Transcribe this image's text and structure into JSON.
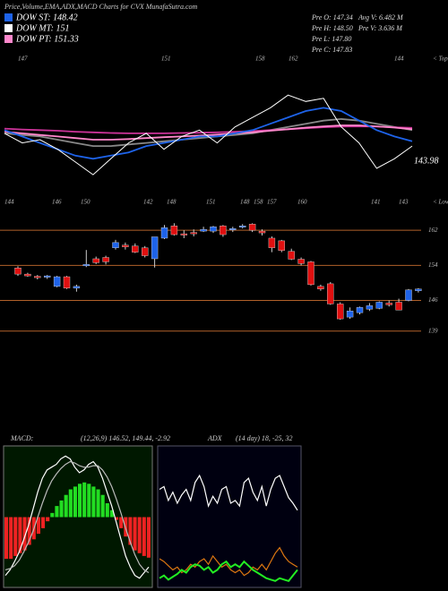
{
  "header": {
    "title": "Price,Volume,EMA,ADX,MACD Charts for CVX  MunafaSutra.com",
    "legend": [
      {
        "name": "DOW ST: 148.42",
        "color": "#1e63e9"
      },
      {
        "name": "DOW MT: 151",
        "color": "#ffffff"
      },
      {
        "name": "DOW PT: 151.33",
        "color": "#ff88cc"
      }
    ],
    "stats": [
      "Pre O: 147.34",
      "Pre H: 148.50",
      "Pre L: 147.80",
      "Pre C: 147.83"
    ],
    "stats2": [
      "Avg V: 6.482 M",
      "Pre V: 3.636 M"
    ]
  },
  "chart_data": [
    {
      "type": "line",
      "top_labels": [
        147,
        151,
        158,
        162,
        144
      ],
      "top_caption": "< Tops",
      "low_labels": [
        144,
        146,
        150,
        142,
        148,
        151,
        148,
        158,
        157,
        160,
        141,
        143
      ],
      "low_caption": "< Lows",
      "last_label": 143.98,
      "ylim": [
        130,
        175
      ],
      "series": [
        {
          "color": "#888888",
          "values": [
            150,
            149.5,
            149,
            148,
            147,
            146,
            146,
            146.5,
            147,
            147.5,
            148,
            148.5,
            149,
            149.5,
            150,
            151,
            152,
            153,
            154,
            154.5,
            154,
            153,
            152,
            151
          ]
        },
        {
          "color": "#cc3399",
          "values": [
            151.5,
            151.2,
            151,
            150.8,
            150.5,
            150.3,
            150.1,
            150,
            150,
            150,
            150.1,
            150.2,
            150.3,
            150.5,
            150.7,
            151,
            151.3,
            151.6,
            151.9,
            152.1,
            152.2,
            152.1,
            151.9,
            151.7
          ]
        },
        {
          "color": "#ff88cc",
          "values": [
            150.5,
            150,
            149.5,
            149,
            148.5,
            148,
            148,
            148.2,
            148.5,
            148.8,
            149,
            149.3,
            149.6,
            150,
            150.3,
            150.8,
            151.3,
            151.8,
            152.2,
            152.5,
            152.5,
            152.2,
            151.8,
            151.3
          ]
        },
        {
          "color": "#1e63e9",
          "values": [
            151,
            149,
            147,
            145,
            143,
            142,
            143,
            144,
            146,
            147,
            148,
            149,
            149,
            150,
            151,
            153,
            155,
            157,
            158,
            157,
            154,
            151,
            149,
            147.5
          ]
        },
        {
          "color": "#ffffff",
          "values": [
            150,
            147,
            148,
            145,
            141,
            137,
            142,
            147,
            150,
            145,
            149,
            151,
            147,
            152,
            155,
            158,
            162,
            160,
            161,
            152,
            147,
            139,
            142,
            146
          ]
        }
      ]
    },
    {
      "type": "candlestick",
      "ylim": [
        116.5,
        165.5
      ],
      "yticks": [
        162,
        154,
        146,
        139
      ],
      "grid": true,
      "up_color": "#1e63e9",
      "down_color": "#e01010",
      "line_color": "#b0602a",
      "open": [
        153.4,
        152,
        151.5,
        151.3,
        149.2,
        151.4,
        148.8,
        154,
        155.5,
        155.8,
        158,
        158.6,
        158.4,
        158,
        155.5,
        160.2,
        163,
        161.2,
        161.5,
        161.8,
        161.8,
        163,
        162.2,
        162.8,
        163.4,
        161.8,
        160.2,
        159.6,
        157.2,
        155.4,
        154.8,
        149.2,
        149.8,
        145.2,
        142.2,
        143.2,
        144,
        144.2,
        145.4,
        145.6,
        146,
        148.2
      ],
      "high": [
        153.8,
        152.3,
        151.8,
        151.8,
        151.6,
        151.6,
        149.6,
        157.5,
        156,
        156.2,
        159.8,
        159.2,
        159,
        158.4,
        160.5,
        163.2,
        163.6,
        162,
        162.2,
        162.8,
        163,
        163.2,
        162.8,
        163.4,
        163.6,
        162.2,
        160.6,
        159.8,
        157.8,
        155.8,
        155,
        149.6,
        150.2,
        145.6,
        144.4,
        144.6,
        145.4,
        145.8,
        146,
        146.4,
        148.6,
        148.8
      ],
      "low": [
        151.6,
        151.4,
        150.8,
        150.9,
        149,
        148.6,
        148,
        153.6,
        154.3,
        154.2,
        157.6,
        157.6,
        156.8,
        155.8,
        153.5,
        160,
        160.8,
        160.2,
        160.6,
        161.6,
        161.4,
        160.5,
        161.6,
        162.4,
        161.6,
        160.8,
        157,
        157,
        155.2,
        154,
        149.4,
        148.2,
        145,
        141.6,
        141.8,
        142.8,
        143.6,
        144,
        144.6,
        143.8,
        145.8,
        147.8
      ],
      "close": [
        152,
        151.6,
        151.2,
        151.6,
        151.4,
        148.8,
        149.2,
        154.2,
        154.6,
        154.8,
        159.2,
        158.2,
        157,
        156.2,
        160.5,
        162.6,
        161,
        161,
        161.3,
        162.2,
        162.8,
        161,
        162.4,
        163,
        162,
        161.4,
        158,
        157.4,
        155.4,
        154.4,
        149.6,
        148.6,
        145.2,
        141.8,
        143.6,
        144.4,
        144.8,
        145.6,
        145,
        143.8,
        148.4,
        148.6
      ]
    },
    {
      "type": "macd",
      "label": "MACD:",
      "params": "(12,26,9) 146.52, 149.44, -2.92",
      "ylim": [
        -5,
        5
      ],
      "pos_color": "#22dd22",
      "neg_color": "#ee2222",
      "histogram": [
        -3,
        -3,
        -2.8,
        -2.6,
        -2.4,
        -2,
        -1.6,
        -1.2,
        -0.8,
        -0.3,
        0.3,
        0.8,
        1.2,
        1.6,
        2,
        2.2,
        2.4,
        2.5,
        2.4,
        2.2,
        2,
        1.6,
        1,
        0.5,
        -0.2,
        -0.8,
        -1.4,
        -2,
        -2.4,
        -2.6,
        -2.8,
        -2.92
      ],
      "series": [
        {
          "color": "#ffffff",
          "values": [
            -4.2,
            -3.8,
            -3.2,
            -2.5,
            -1.6,
            -0.6,
            0.6,
            1.8,
            2.8,
            3.4,
            3.6,
            3.8,
            4.2,
            4.4,
            4.2,
            3.6,
            3.2,
            3.4,
            3.8,
            4,
            3.6,
            2.8,
            1.8,
            0.8,
            -0.4,
            -1.6,
            -2.8,
            -3.6,
            -4.2,
            -4.4,
            -4,
            -3.6
          ]
        },
        {
          "color": "#bbbbbb",
          "values": [
            -3.8,
            -3.7,
            -3.5,
            -3.1,
            -2.5,
            -1.8,
            -1,
            0,
            1,
            1.9,
            2.6,
            3.1,
            3.5,
            3.8,
            4,
            3.9,
            3.7,
            3.6,
            3.6,
            3.7,
            3.7,
            3.4,
            2.9,
            2.2,
            1.3,
            0.3,
            -0.8,
            -1.8,
            -2.7,
            -3.4,
            -3.8,
            -4
          ]
        }
      ]
    },
    {
      "type": "adx",
      "label": "ADX",
      "params": "(14 day) 18, -25, 32",
      "ylim": [
        0,
        100
      ],
      "series": [
        {
          "color": "#ffffff",
          "values": [
            70,
            72,
            62,
            68,
            60,
            66,
            70,
            62,
            75,
            80,
            72,
            58,
            65,
            60,
            70,
            72,
            60,
            62,
            58,
            75,
            78,
            68,
            62,
            72,
            58,
            70,
            78,
            80,
            72,
            64,
            60,
            55
          ]
        },
        {
          "color": "#dd7711",
          "values": [
            20,
            18,
            15,
            12,
            14,
            10,
            12,
            16,
            14,
            18,
            20,
            16,
            22,
            18,
            14,
            16,
            12,
            10,
            12,
            8,
            10,
            14,
            12,
            16,
            12,
            18,
            24,
            28,
            22,
            18,
            16,
            14
          ]
        },
        {
          "color": "#22ee22",
          "values": [
            6,
            8,
            5,
            7,
            9,
            12,
            10,
            14,
            16,
            15,
            12,
            14,
            10,
            12,
            16,
            18,
            14,
            16,
            14,
            18,
            15,
            12,
            10,
            8,
            6,
            5,
            4,
            6,
            5,
            4,
            8,
            12
          ]
        }
      ]
    }
  ]
}
